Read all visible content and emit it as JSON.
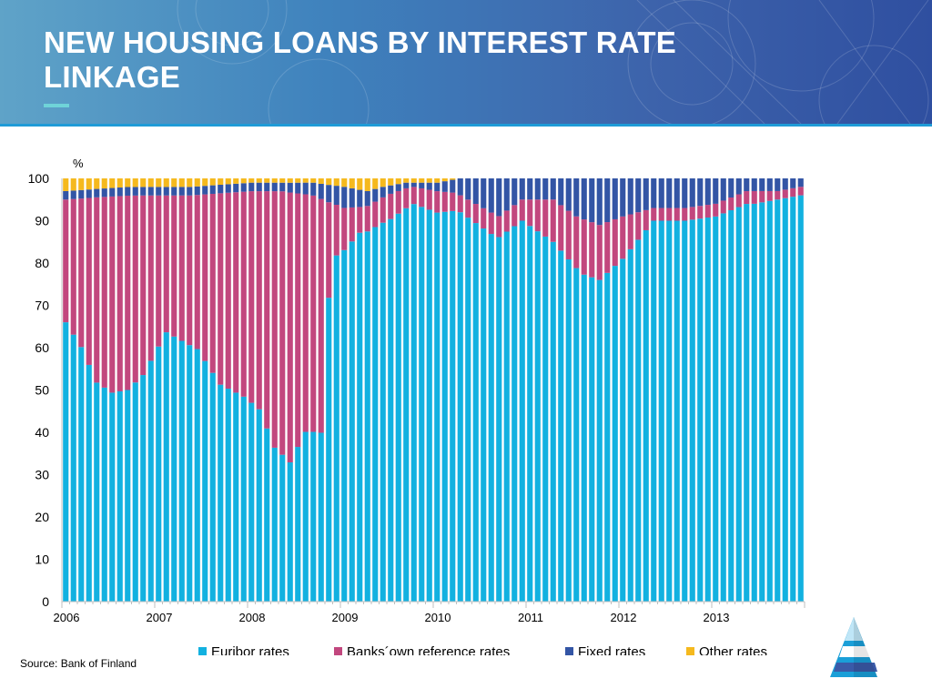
{
  "slide": {
    "title_line1": "NEW HOUSING LOANS BY INTEREST RATE",
    "title_line2": "LINKAGE",
    "source": "Source: Bank of Finland",
    "logo_icon": "bank-of-finland-logo-icon"
  },
  "chart_data": {
    "type": "bar",
    "stacked": true,
    "ylabel": "%",
    "ylim": [
      0,
      100
    ],
    "yticks": [
      0,
      10,
      20,
      30,
      40,
      50,
      60,
      70,
      80,
      90,
      100
    ],
    "xticks": [
      "2006",
      "2007",
      "2008",
      "2009",
      "2010",
      "2011",
      "2012",
      "2013"
    ],
    "months": 96,
    "grid": false,
    "legend_position": "bottom",
    "series": [
      {
        "name": "Euribor rates",
        "color": "#12b1e0",
        "anchors": [
          [
            0,
            66
          ],
          [
            2,
            60
          ],
          [
            4,
            52
          ],
          [
            6,
            49
          ],
          [
            8,
            49
          ],
          [
            10,
            53
          ],
          [
            13,
            63
          ],
          [
            17,
            59
          ],
          [
            20,
            51
          ],
          [
            23,
            48
          ],
          [
            25,
            45
          ],
          [
            27,
            36
          ],
          [
            29,
            32
          ],
          [
            31,
            40
          ],
          [
            33,
            39
          ],
          [
            34,
            70
          ],
          [
            35,
            82
          ],
          [
            38,
            86
          ],
          [
            42,
            91
          ],
          [
            45,
            93
          ],
          [
            48,
            91
          ],
          [
            51,
            92
          ],
          [
            55,
            86
          ],
          [
            59,
            90
          ],
          [
            63,
            85
          ],
          [
            67,
            77
          ],
          [
            69,
            76
          ],
          [
            72,
            81
          ],
          [
            76,
            90
          ],
          [
            80,
            90
          ],
          [
            84,
            91
          ],
          [
            89,
            94
          ],
          [
            92,
            95
          ],
          [
            95,
            96
          ]
        ]
      },
      {
        "name": "Banks´own reference rates",
        "color": "#c2477e",
        "anchors": [
          [
            0,
            29
          ],
          [
            2,
            35
          ],
          [
            4,
            44
          ],
          [
            6,
            46
          ],
          [
            8,
            45
          ],
          [
            10,
            42
          ],
          [
            13,
            32
          ],
          [
            17,
            36
          ],
          [
            20,
            45
          ],
          [
            23,
            48
          ],
          [
            25,
            51
          ],
          [
            27,
            60
          ],
          [
            29,
            62
          ],
          [
            31,
            56
          ],
          [
            33,
            54
          ],
          [
            34,
            22
          ],
          [
            35,
            12
          ],
          [
            38,
            6
          ],
          [
            42,
            6
          ],
          [
            45,
            4
          ],
          [
            48,
            5
          ],
          [
            51,
            4
          ],
          [
            55,
            5
          ],
          [
            59,
            5
          ],
          [
            63,
            10
          ],
          [
            67,
            13
          ],
          [
            69,
            13
          ],
          [
            72,
            10
          ],
          [
            76,
            3
          ],
          [
            80,
            3
          ],
          [
            84,
            3
          ],
          [
            89,
            3
          ],
          [
            92,
            2
          ],
          [
            95,
            2
          ]
        ]
      },
      {
        "name": "Fixed rates",
        "color": "#3355a5",
        "anchors": [
          [
            0,
            2
          ],
          [
            4,
            2
          ],
          [
            8,
            2
          ],
          [
            12,
            2
          ],
          [
            16,
            2
          ],
          [
            20,
            2
          ],
          [
            24,
            2
          ],
          [
            28,
            2
          ],
          [
            32,
            3
          ],
          [
            34,
            4
          ],
          [
            36,
            5
          ],
          [
            38,
            4
          ],
          [
            40,
            3
          ],
          [
            42,
            2
          ],
          [
            45,
            1
          ],
          [
            48,
            2
          ],
          [
            50,
            3
          ],
          [
            53,
            6
          ],
          [
            56,
            9
          ],
          [
            59,
            5
          ],
          [
            63,
            5
          ],
          [
            66,
            9
          ],
          [
            69,
            11
          ],
          [
            72,
            9
          ],
          [
            76,
            7
          ],
          [
            80,
            7
          ],
          [
            84,
            6
          ],
          [
            88,
            3
          ],
          [
            92,
            3
          ],
          [
            95,
            2
          ]
        ]
      },
      {
        "name": "Other rates",
        "color": "#f5b91e",
        "anchors": [
          [
            0,
            3
          ],
          [
            8,
            2
          ],
          [
            16,
            2
          ],
          [
            24,
            1
          ],
          [
            32,
            1
          ],
          [
            36,
            2
          ],
          [
            39,
            3
          ],
          [
            41,
            2
          ],
          [
            44,
            1
          ],
          [
            48,
            1
          ],
          [
            51,
            0
          ],
          [
            60,
            0
          ],
          [
            70,
            0
          ],
          [
            80,
            0
          ],
          [
            95,
            0
          ]
        ]
      }
    ]
  }
}
